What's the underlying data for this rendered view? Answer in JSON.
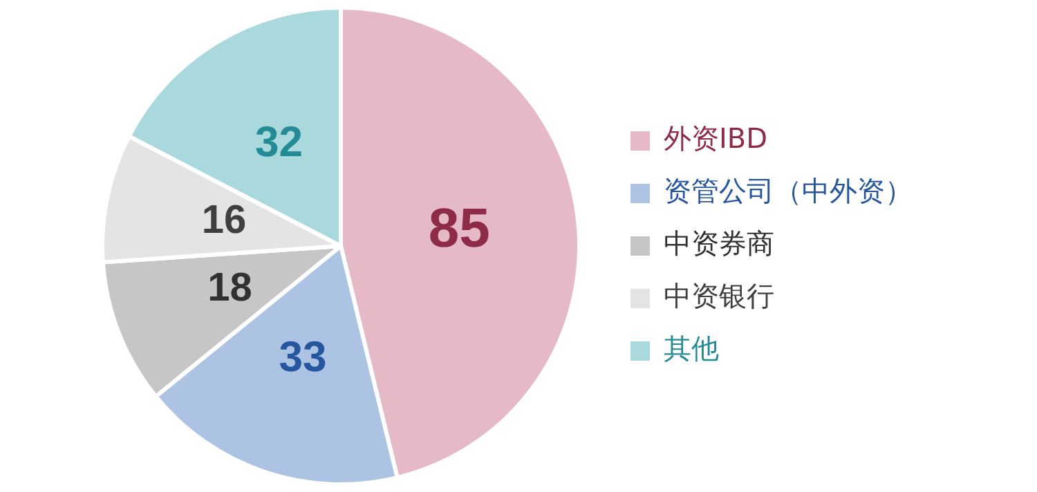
{
  "chart_data": {
    "type": "pie",
    "categories": [
      "外资IBD",
      "资管公司（中外资）",
      "中资券商",
      "中资银行",
      "其他"
    ],
    "values": [
      85,
      33,
      18,
      16,
      32
    ],
    "colors": [
      "#e6b9c6",
      "#adc3e3",
      "#c6c6c6",
      "#e4e4e4",
      "#a9d8dd"
    ],
    "data_labels": true,
    "legend": "right"
  }
}
